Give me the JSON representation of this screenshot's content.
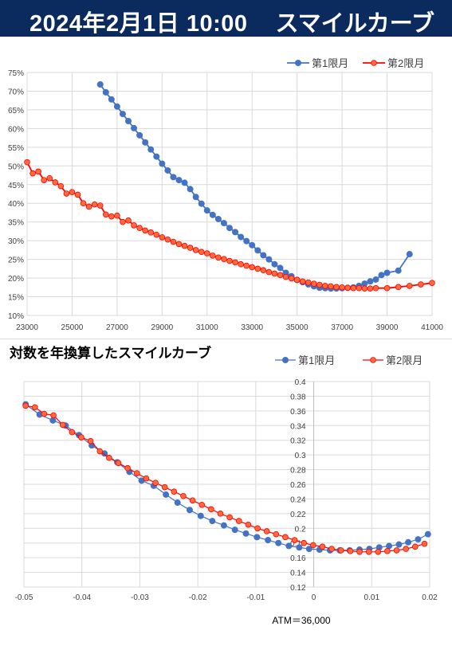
{
  "header": {
    "date": "2024年2月1日 10:00",
    "title": "スマイルカーブ"
  },
  "colors": {
    "header_bg": "#0b2a5e",
    "series1": "#4472c4",
    "series2": "#ff0000",
    "series2_fill": "#ff6a3d",
    "grid": "#d9d9d9"
  },
  "legend": {
    "series1": "第1限月",
    "series2": "第2限月"
  },
  "chart2_title": "対数を年換算したスマイルカーブ",
  "atm_label": "ATM＝36,000",
  "chart_data": [
    {
      "type": "line",
      "title": "",
      "xlabel": "",
      "ylabel": "",
      "xlim": [
        23000,
        41000
      ],
      "ylim": [
        0.1,
        0.75
      ],
      "x_ticks": [
        "23000",
        "25000",
        "27000",
        "29000",
        "31000",
        "33000",
        "35000",
        "37000",
        "39000",
        "41000"
      ],
      "y_ticks": [
        "10%",
        "15%",
        "20%",
        "25%",
        "30%",
        "35%",
        "40%",
        "45%",
        "50%",
        "55%",
        "60%",
        "65%",
        "70%",
        "75%"
      ],
      "legend_position": "top-right",
      "series": [
        {
          "name": "第1限月",
          "x": [
            26250,
            26500,
            26750,
            27000,
            27250,
            27500,
            27750,
            28000,
            28250,
            28500,
            28750,
            29000,
            29250,
            29500,
            29750,
            30000,
            30250,
            30500,
            30750,
            31000,
            31250,
            31500,
            31750,
            32000,
            32250,
            32500,
            32750,
            33000,
            33250,
            33500,
            33750,
            34000,
            34250,
            34500,
            34750,
            35000,
            35250,
            35500,
            35750,
            36000,
            36250,
            36500,
            36750,
            37000,
            37250,
            37500,
            37750,
            38000,
            38250,
            38500,
            38750,
            39000,
            39500,
            40000
          ],
          "y": [
            0.718,
            0.697,
            0.678,
            0.659,
            0.639,
            0.62,
            0.601,
            0.582,
            0.563,
            0.544,
            0.525,
            0.506,
            0.488,
            0.47,
            0.462,
            0.455,
            0.438,
            0.417,
            0.399,
            0.381,
            0.369,
            0.358,
            0.347,
            0.334,
            0.323,
            0.31,
            0.299,
            0.288,
            0.274,
            0.261,
            0.25,
            0.237,
            0.227,
            0.214,
            0.205,
            0.195,
            0.189,
            0.183,
            0.178,
            0.174,
            0.173,
            0.172,
            0.172,
            0.173,
            0.174,
            0.175,
            0.179,
            0.185,
            0.191,
            0.196,
            0.208,
            0.214,
            0.22,
            0.264
          ]
        },
        {
          "name": "第2限月",
          "x": [
            23000,
            23250,
            23500,
            23750,
            24000,
            24250,
            24500,
            24750,
            25000,
            25250,
            25500,
            25750,
            26000,
            26250,
            26500,
            26750,
            27000,
            27250,
            27500,
            27750,
            28000,
            28250,
            28500,
            28750,
            29000,
            29250,
            29500,
            29750,
            30000,
            30250,
            30500,
            30750,
            31000,
            31250,
            31500,
            31750,
            32000,
            32250,
            32500,
            32750,
            33000,
            33250,
            33500,
            33750,
            34000,
            34250,
            34500,
            34750,
            35000,
            35250,
            35500,
            35750,
            36000,
            36250,
            36500,
            36750,
            37000,
            37250,
            37500,
            37750,
            38000,
            38250,
            38500,
            39000,
            39500,
            40000,
            40500,
            41000
          ],
          "y": [
            0.51,
            0.48,
            0.485,
            0.462,
            0.467,
            0.456,
            0.446,
            0.426,
            0.43,
            0.423,
            0.4,
            0.391,
            0.397,
            0.394,
            0.37,
            0.365,
            0.367,
            0.35,
            0.354,
            0.341,
            0.334,
            0.327,
            0.322,
            0.316,
            0.309,
            0.303,
            0.297,
            0.291,
            0.286,
            0.281,
            0.275,
            0.27,
            0.266,
            0.26,
            0.255,
            0.251,
            0.246,
            0.242,
            0.237,
            0.233,
            0.229,
            0.225,
            0.221,
            0.216,
            0.212,
            0.208,
            0.203,
            0.199,
            0.195,
            0.191,
            0.188,
            0.185,
            0.182,
            0.179,
            0.178,
            0.176,
            0.175,
            0.174,
            0.173,
            0.173,
            0.172,
            0.172,
            0.173,
            0.173,
            0.176,
            0.179,
            0.183,
            0.187
          ]
        }
      ]
    },
    {
      "type": "line",
      "title": "対数を年換算したスマイルカーブ",
      "xlabel": "ATM＝36,000",
      "ylabel": "",
      "xlim": [
        -0.05,
        0.02
      ],
      "ylim": [
        0.12,
        0.4
      ],
      "x_ticks": [
        "-0.05",
        "-0.04",
        "-0.03",
        "-0.02",
        "-0.01",
        "0",
        "0.01",
        "0.02"
      ],
      "y_ticks": [
        "0.12",
        "0.14",
        "0.16",
        "0.18",
        "0.2",
        "0.22",
        "0.24",
        "0.26",
        "0.28",
        "0.3",
        "0.32",
        "0.34",
        "0.36",
        "0.38",
        "0.4"
      ],
      "legend_position": "top-right",
      "series": [
        {
          "name": "第1限月",
          "x": [
            -0.0497,
            -0.0473,
            -0.045,
            -0.0428,
            -0.0405,
            -0.0383,
            -0.0361,
            -0.0339,
            -0.0318,
            -0.0297,
            -0.0276,
            -0.0255,
            -0.0235,
            -0.0214,
            -0.0195,
            -0.0175,
            -0.0155,
            -0.0136,
            -0.0117,
            -0.0098,
            -0.0079,
            -0.0061,
            -0.0043,
            -0.0025,
            -0.0008,
            0.001,
            0.0028,
            0.0045,
            0.0062,
            0.0079,
            0.0096,
            0.0113,
            0.013,
            0.0147,
            0.0163,
            0.018,
            0.0197
          ],
          "y": [
            0.369,
            0.355,
            0.347,
            0.34,
            0.327,
            0.313,
            0.302,
            0.29,
            0.277,
            0.265,
            0.258,
            0.246,
            0.235,
            0.225,
            0.217,
            0.21,
            0.204,
            0.198,
            0.193,
            0.188,
            0.184,
            0.18,
            0.176,
            0.174,
            0.172,
            0.171,
            0.17,
            0.17,
            0.17,
            0.171,
            0.172,
            0.174,
            0.176,
            0.178,
            0.181,
            0.185,
            0.192
          ]
        },
        {
          "name": "第2限月",
          "x": [
            -0.0497,
            -0.0481,
            -0.0465,
            -0.0449,
            -0.0433,
            -0.0417,
            -0.0401,
            -0.0385,
            -0.0369,
            -0.0353,
            -0.0337,
            -0.0321,
            -0.0305,
            -0.0289,
            -0.0273,
            -0.0257,
            -0.0241,
            -0.0225,
            -0.0209,
            -0.0193,
            -0.0177,
            -0.0161,
            -0.0145,
            -0.0129,
            -0.0113,
            -0.0097,
            -0.0081,
            -0.0065,
            -0.0049,
            -0.0033,
            -0.0017,
            -0.0001,
            0.0015,
            0.0031,
            0.0047,
            0.0063,
            0.0079,
            0.0095,
            0.0111,
            0.0127,
            0.0143,
            0.0159,
            0.0175,
            0.0191
          ],
          "y": [
            0.367,
            0.365,
            0.356,
            0.354,
            0.341,
            0.331,
            0.324,
            0.319,
            0.305,
            0.296,
            0.289,
            0.282,
            0.275,
            0.268,
            0.262,
            0.256,
            0.25,
            0.244,
            0.238,
            0.232,
            0.226,
            0.22,
            0.215,
            0.21,
            0.205,
            0.2,
            0.196,
            0.192,
            0.188,
            0.184,
            0.18,
            0.177,
            0.175,
            0.172,
            0.17,
            0.169,
            0.168,
            0.168,
            0.168,
            0.169,
            0.17,
            0.172,
            0.175,
            0.179
          ]
        }
      ]
    }
  ]
}
